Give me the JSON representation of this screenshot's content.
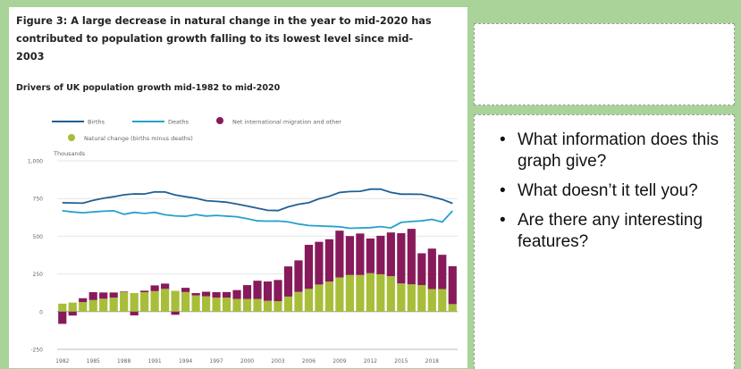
{
  "figure_title": "Figure 3: A large decrease in natural change in the year to mid-2020 has contributed to population growth falling to its lowest level since mid-2003",
  "bullets": [
    "What information does this graph give?",
    "What doesn’t it tell you?",
    "Are there any interesting features?"
  ],
  "colors": {
    "background": "#a9d398",
    "births": "#206095",
    "deaths": "#27a0cc",
    "migration": "#871a5b",
    "natural_change": "#a8bd3a"
  },
  "chart_data": {
    "type": "line+bar",
    "title": "Drivers of UK population growth mid-1982 to mid-2020",
    "ylabel": "Thousands",
    "ylim": [
      -250,
      1000
    ],
    "yticks": [
      -250,
      0,
      250,
      500,
      750,
      "1,000"
    ],
    "xticks": [
      "1982",
      "1985",
      "1988",
      "1991",
      "1994",
      "1997",
      "2000",
      "2003",
      "2006",
      "2009",
      "2012",
      "2015",
      "2018"
    ],
    "years": [
      1982,
      1983,
      1984,
      1985,
      1986,
      1987,
      1988,
      1989,
      1990,
      1991,
      1992,
      1993,
      1994,
      1995,
      1996,
      1997,
      1998,
      1999,
      2000,
      2001,
      2002,
      2003,
      2004,
      2005,
      2006,
      2007,
      2008,
      2009,
      2010,
      2011,
      2012,
      2013,
      2014,
      2015,
      2016,
      2017,
      2018,
      2019,
      2020
    ],
    "legend": [
      {
        "name": "Births",
        "kind": "line"
      },
      {
        "name": "Deaths",
        "kind": "line"
      },
      {
        "name": "Net international migration and other",
        "kind": "dot"
      },
      {
        "name": "Natural change (births minus deaths)",
        "kind": "dot"
      }
    ],
    "series": [
      {
        "name": "Births",
        "values": [
          722,
          721,
          719,
          738,
          752,
          762,
          775,
          781,
          780,
          794,
          793,
          773,
          762,
          752,
          736,
          731,
          726,
          713,
          700,
          686,
          672,
          670,
          695,
          712,
          722,
          748,
          765,
          790,
          796,
          798,
          812,
          812,
          790,
          779,
          779,
          778,
          762,
          744,
          718
        ]
      },
      {
        "name": "Deaths",
        "values": [
          669,
          661,
          656,
          661,
          666,
          669,
          646,
          658,
          651,
          658,
          642,
          635,
          632,
          644,
          634,
          638,
          633,
          629,
          616,
          602,
          600,
          601,
          595,
          581,
          571,
          568,
          566,
          563,
          553,
          555,
          557,
          564,
          555,
          592,
          598,
          602,
          612,
          594,
          668
        ]
      },
      {
        "name": "Net international migration and other",
        "values": [
          -81,
          -26,
          26,
          52,
          41,
          34,
          4,
          -25,
          10,
          38,
          35,
          -21,
          28,
          15,
          30,
          36,
          37,
          59,
          92,
          121,
          128,
          141,
          200,
          209,
          292,
          283,
          281,
          310,
          258,
          275,
          230,
          255,
          290,
          333,
          368,
          211,
          268,
          227,
          251
        ]
      },
      {
        "name": "Natural change (births minus deaths)",
        "values": [
          53,
          60,
          63,
          77,
          86,
          93,
          129,
          123,
          129,
          136,
          151,
          138,
          130,
          108,
          102,
          93,
          93,
          84,
          84,
          84,
          72,
          69,
          100,
          131,
          151,
          180,
          199,
          227,
          243,
          243,
          255,
          248,
          235,
          187,
          181,
          176,
          150,
          150,
          50
        ]
      }
    ]
  }
}
